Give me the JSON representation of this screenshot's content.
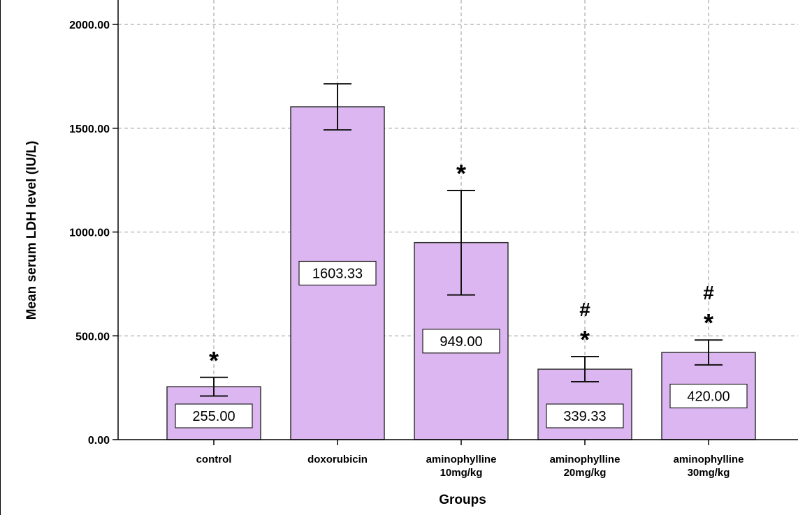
{
  "chart_data": {
    "type": "bar",
    "xlabel": "Groups",
    "ylabel": "Mean serum LDH level (IU/L)",
    "ylim": [
      0,
      2000
    ],
    "yticks": [
      "0.00",
      "500.00",
      "1000.00",
      "1500.00",
      "2000.00"
    ],
    "grid": true,
    "categories": [
      [
        "control"
      ],
      [
        "doxorubicin"
      ],
      [
        "aminophylline",
        "10mg/kg"
      ],
      [
        "aminophylline",
        "20mg/kg"
      ],
      [
        "aminophylline",
        "30mg/kg"
      ]
    ],
    "values": [
      255.0,
      1603.33,
      949.0,
      339.33,
      420.0
    ],
    "data_labels": [
      "255.00",
      "1603.33",
      "949.00",
      "339.33",
      "420.00"
    ],
    "error_bars": [
      {
        "low": 210,
        "high": 300
      },
      {
        "low": 1492,
        "high": 1714
      },
      {
        "low": 697,
        "high": 1200
      },
      {
        "low": 279,
        "high": 400
      },
      {
        "low": 360,
        "high": 480
      }
    ],
    "annotations": [
      [
        "*"
      ],
      [],
      [
        "*"
      ],
      [
        "*",
        "#"
      ],
      [
        "*",
        "#"
      ]
    ],
    "bar_color": "#dcb6f0"
  }
}
